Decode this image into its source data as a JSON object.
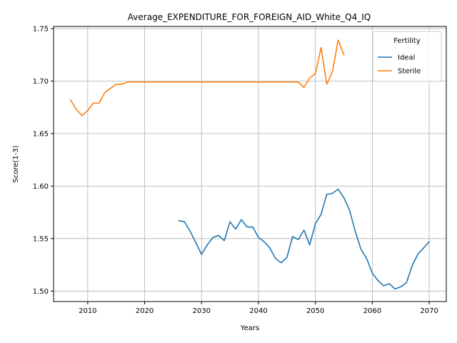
{
  "chart_data": {
    "type": "line",
    "title": "Average_EXPENDITURE_FOR_FOREIGN_AID_White_Q4_IQ",
    "xlabel": "Years",
    "ylabel": "Score(1-3)",
    "xlim": [
      2004,
      2073
    ],
    "ylim": [
      1.49,
      1.752
    ],
    "x_ticks": [
      2010,
      2020,
      2030,
      2040,
      2050,
      2060,
      2070
    ],
    "y_ticks": [
      1.5,
      1.55,
      1.6,
      1.65,
      1.7,
      1.75
    ],
    "x_tick_labels": [
      "2010",
      "2020",
      "2030",
      "2040",
      "2050",
      "2060",
      "2070"
    ],
    "y_tick_labels": [
      "1.50",
      "1.55",
      "1.60",
      "1.65",
      "1.70",
      "1.75"
    ],
    "grid": true,
    "legend": {
      "title": "Fertility",
      "position": "top-right"
    },
    "series": [
      {
        "name": "Ideal",
        "color": "#1f77b4",
        "x": [
          2026,
          2027,
          2028,
          2029,
          2030,
          2031,
          2032,
          2033,
          2034,
          2035,
          2036,
          2037,
          2038,
          2039,
          2040,
          2041,
          2042,
          2043,
          2044,
          2045,
          2046,
          2047,
          2048,
          2049,
          2050,
          2051,
          2052,
          2053,
          2054,
          2055,
          2056,
          2057,
          2058,
          2059,
          2060,
          2061,
          2062,
          2063,
          2064,
          2065,
          2066,
          2067,
          2068,
          2069,
          2070
        ],
        "y": [
          1.567,
          1.566,
          1.557,
          1.546,
          1.535,
          1.544,
          1.551,
          1.553,
          1.548,
          1.566,
          1.559,
          1.568,
          1.561,
          1.561,
          1.551,
          1.547,
          1.541,
          1.531,
          1.527,
          1.532,
          1.552,
          1.549,
          1.558,
          1.544,
          1.564,
          1.573,
          1.592,
          1.593,
          1.597,
          1.589,
          1.577,
          1.557,
          1.54,
          1.531,
          1.517,
          1.51,
          1.505,
          1.507,
          1.502,
          1.504,
          1.508,
          1.524,
          1.535,
          1.541,
          1.547
        ]
      },
      {
        "name": "Sterile",
        "color": "#ff7f0e",
        "x": [
          2007,
          2008,
          2009,
          2010,
          2011,
          2012,
          2013,
          2014,
          2015,
          2016,
          2017,
          2018,
          2019,
          2020,
          2021,
          2022,
          2023,
          2024,
          2025,
          2026,
          2027,
          2028,
          2029,
          2030,
          2031,
          2032,
          2033,
          2034,
          2035,
          2036,
          2037,
          2038,
          2039,
          2040,
          2041,
          2042,
          2043,
          2044,
          2045,
          2046,
          2047,
          2048,
          2049,
          2050,
          2051,
          2052,
          2053,
          2054,
          2055
        ],
        "y": [
          1.682,
          1.673,
          1.667,
          1.672,
          1.679,
          1.679,
          1.689,
          1.693,
          1.697,
          1.697,
          1.699,
          1.699,
          1.699,
          1.699,
          1.699,
          1.699,
          1.699,
          1.699,
          1.699,
          1.699,
          1.699,
          1.699,
          1.699,
          1.699,
          1.699,
          1.699,
          1.699,
          1.699,
          1.699,
          1.699,
          1.699,
          1.699,
          1.699,
          1.699,
          1.699,
          1.699,
          1.699,
          1.699,
          1.699,
          1.699,
          1.699,
          1.694,
          1.703,
          1.707,
          1.732,
          1.697,
          1.709,
          1.739,
          1.725
        ]
      }
    ]
  }
}
